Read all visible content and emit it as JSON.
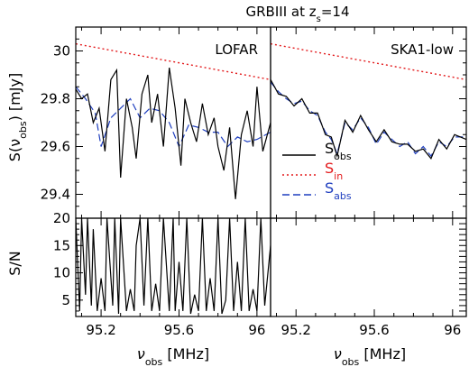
{
  "figure": {
    "title_base": "GRBIII at z",
    "title_sub": "s",
    "title_tail": "=14"
  },
  "colors": {
    "obs": "#000000",
    "in": "#e31a1c",
    "abs": "#1f3fbf",
    "frame": "#000000"
  },
  "chart_data": [
    {
      "type": "line",
      "panel": "top-left",
      "label": "LOFAR",
      "xlabel": "ν_obs [MHz]",
      "ylabel": "S(ν_obs) [mJy]",
      "xlim": [
        95.07,
        96.07
      ],
      "ylim": [
        29.3,
        30.1
      ],
      "xticks": [
        "95.2",
        "95.6",
        "96"
      ],
      "yticks": [
        "29.4",
        "29.6",
        "29.8",
        "30"
      ],
      "series": [
        {
          "key": "in",
          "style": "dotted",
          "x": [
            95.07,
            96.07
          ],
          "y": [
            30.03,
            29.88
          ]
        },
        {
          "key": "abs",
          "style": "dashed",
          "x": [
            95.07,
            95.12,
            95.17,
            95.2,
            95.25,
            95.3,
            95.35,
            95.4,
            95.45,
            95.5,
            95.55,
            95.6,
            95.65,
            95.7,
            95.75,
            95.8,
            95.85,
            95.9,
            95.95,
            96.0,
            96.07
          ],
          "y": [
            29.85,
            29.8,
            29.74,
            29.6,
            29.72,
            29.76,
            29.8,
            29.72,
            29.76,
            29.75,
            29.7,
            29.6,
            29.69,
            29.68,
            29.66,
            29.66,
            29.6,
            29.64,
            29.62,
            29.63,
            29.66
          ]
        },
        {
          "key": "obs",
          "style": "solid",
          "x": [
            95.07,
            95.1,
            95.13,
            95.16,
            95.19,
            95.22,
            95.25,
            95.28,
            95.3,
            95.33,
            95.36,
            95.38,
            95.41,
            95.44,
            95.46,
            95.49,
            95.52,
            95.55,
            95.58,
            95.61,
            95.63,
            95.66,
            95.69,
            95.72,
            95.75,
            95.78,
            95.8,
            95.83,
            95.86,
            95.89,
            95.92,
            95.95,
            95.98,
            96.0,
            96.03,
            96.07
          ],
          "y": [
            29.84,
            29.8,
            29.82,
            29.7,
            29.76,
            29.58,
            29.88,
            29.92,
            29.47,
            29.8,
            29.68,
            29.55,
            29.82,
            29.9,
            29.7,
            29.82,
            29.6,
            29.93,
            29.76,
            29.52,
            29.8,
            29.7,
            29.62,
            29.78,
            29.65,
            29.72,
            29.6,
            29.5,
            29.68,
            29.38,
            29.65,
            29.75,
            29.6,
            29.85,
            29.58,
            29.7
          ]
        }
      ]
    },
    {
      "type": "line",
      "panel": "top-right",
      "label": "SKA1-low",
      "xlabel": "ν_obs [MHz]",
      "xlim": [
        95.07,
        96.07
      ],
      "ylim": [
        29.3,
        30.1
      ],
      "xticks": [
        "95.2",
        "95.6",
        "96"
      ],
      "series": [
        {
          "key": "in",
          "style": "dotted",
          "x": [
            95.07,
            96.07
          ],
          "y": [
            30.03,
            29.88
          ]
        },
        {
          "key": "abs",
          "style": "dashed",
          "x": [
            95.07,
            95.11,
            95.15,
            95.19,
            95.23,
            95.27,
            95.31,
            95.35,
            95.38,
            95.41,
            95.45,
            95.49,
            95.53,
            95.57,
            95.61,
            95.65,
            95.69,
            95.73,
            95.77,
            95.81,
            95.85,
            95.89,
            95.93,
            95.97,
            96.01,
            96.07
          ],
          "y": [
            29.87,
            29.83,
            29.8,
            29.78,
            29.79,
            29.75,
            29.73,
            29.66,
            29.63,
            29.57,
            29.7,
            29.67,
            29.72,
            29.68,
            29.61,
            29.66,
            29.63,
            29.6,
            29.62,
            29.57,
            29.6,
            29.56,
            29.62,
            29.6,
            29.64,
            29.64
          ]
        },
        {
          "key": "obs",
          "style": "solid",
          "x": [
            95.07,
            95.11,
            95.15,
            95.19,
            95.23,
            95.27,
            95.31,
            95.35,
            95.38,
            95.41,
            95.45,
            95.49,
            95.53,
            95.57,
            95.61,
            95.65,
            95.69,
            95.73,
            95.77,
            95.81,
            95.85,
            95.89,
            95.93,
            95.97,
            96.01,
            96.07
          ],
          "y": [
            29.88,
            29.82,
            29.81,
            29.77,
            29.8,
            29.74,
            29.74,
            29.65,
            29.64,
            29.56,
            29.71,
            29.66,
            29.73,
            29.67,
            29.62,
            29.67,
            29.62,
            29.61,
            29.61,
            29.58,
            29.59,
            29.55,
            29.63,
            29.59,
            29.65,
            29.63
          ]
        }
      ],
      "legend": [
        {
          "key": "obs",
          "style": "solid",
          "base": "S",
          "sub": "obs"
        },
        {
          "key": "in",
          "style": "dotted",
          "base": "S",
          "sub": "in"
        },
        {
          "key": "abs",
          "style": "dashed",
          "base": "S",
          "sub": "abs"
        }
      ]
    },
    {
      "type": "line",
      "panel": "bottom-left",
      "xlabel": "ν_obs [MHz]",
      "ylabel": "S/N",
      "xlim": [
        95.07,
        96.07
      ],
      "ylim": [
        2,
        20
      ],
      "xticks": [
        "95.2",
        "95.6",
        "96"
      ],
      "yticks": [
        "5",
        "10",
        "15",
        "20"
      ],
      "series": [
        {
          "key": "obs",
          "style": "solid",
          "x": [
            95.07,
            95.09,
            95.1,
            95.12,
            95.13,
            95.15,
            95.16,
            95.18,
            95.2,
            95.22,
            95.23,
            95.26,
            95.27,
            95.29,
            95.3,
            95.33,
            95.35,
            95.37,
            95.38,
            95.4,
            95.42,
            95.44,
            95.46,
            95.48,
            95.5,
            95.52,
            95.55,
            95.57,
            95.58,
            95.6,
            95.62,
            95.64,
            95.66,
            95.68,
            95.7,
            95.72,
            95.74,
            95.76,
            95.78,
            95.8,
            95.82,
            95.84,
            95.86,
            95.88,
            95.9,
            95.92,
            95.94,
            95.96,
            95.98,
            96.0,
            96.02,
            96.04,
            96.07
          ],
          "y": [
            20,
            3,
            20,
            6,
            20,
            4,
            18,
            3,
            9,
            3,
            20,
            4,
            20,
            2.5,
            20,
            3,
            7,
            3,
            15,
            20,
            4,
            20,
            3,
            8,
            3,
            20,
            3,
            20,
            3,
            12,
            3,
            20,
            2.5,
            6,
            3,
            20,
            3,
            9,
            3,
            20,
            2.5,
            5,
            20,
            3,
            12,
            3,
            20,
            3,
            7,
            3,
            20,
            4,
            15
          ]
        }
      ]
    },
    {
      "type": "line",
      "panel": "bottom-right",
      "xlabel": "ν_obs [MHz]",
      "xlim": [
        95.07,
        96.07
      ],
      "ylim": [
        2,
        20
      ],
      "xticks": [
        "95.2",
        "95.6",
        "96"
      ],
      "series": []
    }
  ],
  "x_axis_title": {
    "base": "ν",
    "sub": "obs",
    "unit": " [MHz]"
  },
  "y_axis_title_top": {
    "pre": "S(ν",
    "sub": "obs",
    "post": ") [mJy]"
  },
  "y_axis_title_bottom": "S/N"
}
